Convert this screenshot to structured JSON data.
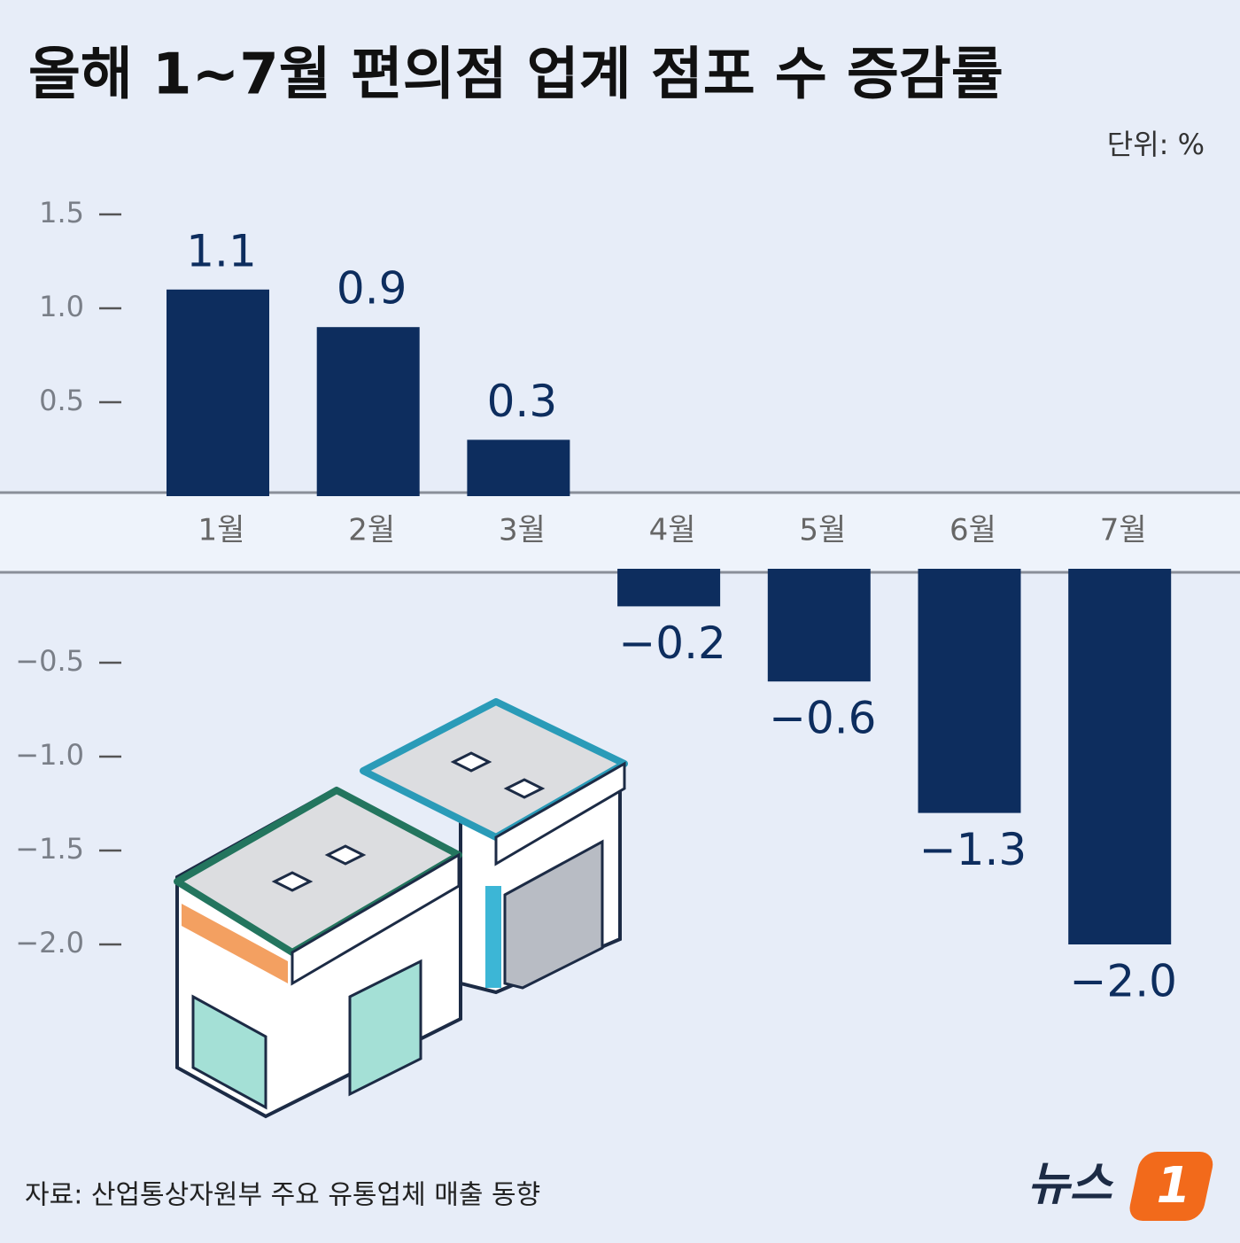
{
  "chart_data": {
    "type": "bar",
    "title": "올해 1~7월 편의점 업계 점포 수 증감률",
    "unit_label": "단위: %",
    "categories": [
      "1월",
      "2월",
      "3월",
      "4월",
      "5월",
      "6월",
      "7월"
    ],
    "values": [
      1.1,
      0.9,
      0.3,
      -0.2,
      -0.6,
      -1.3,
      -2.0
    ],
    "value_labels": [
      "1.1",
      "0.9",
      "0.3",
      "−0.2",
      "−0.6",
      "−1.3",
      "−2.0"
    ],
    "color": "#0d2d5e",
    "ylim": [
      -2.0,
      1.5
    ],
    "yticks": [
      {
        "value": -2.0,
        "label": "−2.0"
      },
      {
        "value": -1.5,
        "label": "−1.5"
      },
      {
        "value": -1.0,
        "label": "−1.0"
      },
      {
        "value": -0.5,
        "label": "−0.5"
      },
      0.5,
      {
        "value": 1.0,
        "label": "1.0"
      },
      1.5
    ],
    "source": "자료: 산업통상자원부 주요 유통업체 매출 동향",
    "logo": {
      "text": "뉴스",
      "mark": "1"
    }
  }
}
